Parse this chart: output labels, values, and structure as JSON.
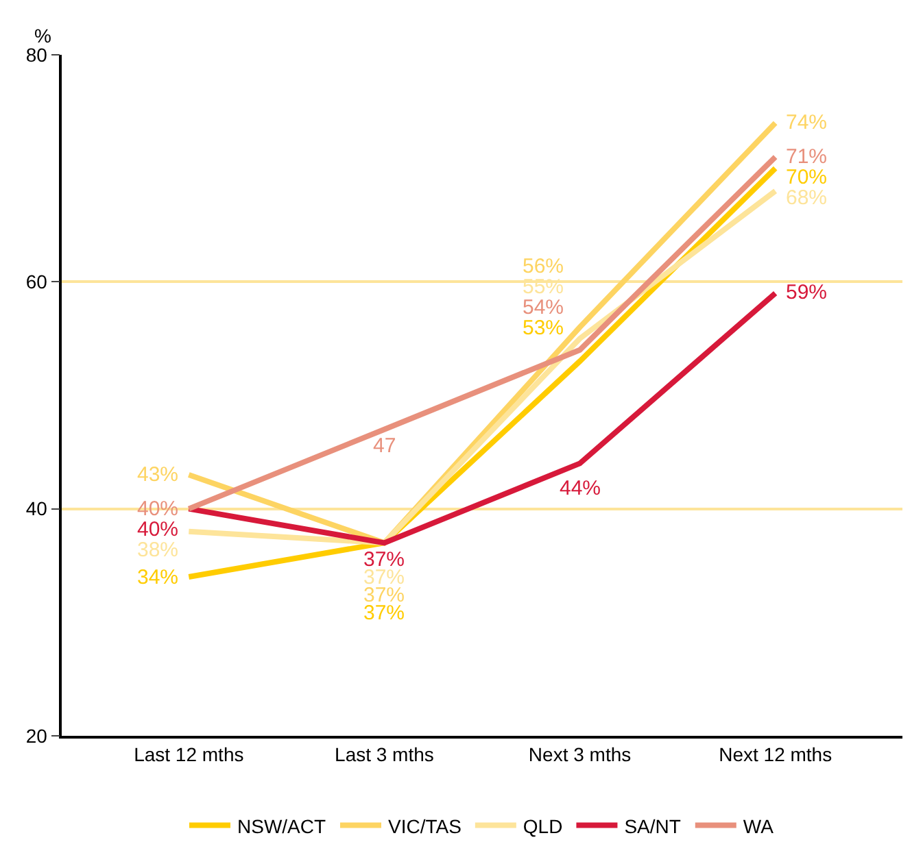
{
  "chart_data": {
    "type": "line",
    "ylabel": "%",
    "categories": [
      "Last 12 mths",
      "Last 3 mths",
      "Next 3 mths",
      "Next 12 mths"
    ],
    "ylim": [
      20,
      80
    ],
    "yticks": [
      20,
      40,
      60,
      80
    ],
    "grid": "y",
    "legend": "bottom",
    "marker": "none",
    "line_style": "solid",
    "series": [
      {
        "name": "NSW/ACT",
        "color": "#ffcc00",
        "values": [
          34,
          37,
          53,
          70
        ],
        "value_labels": [
          "34%",
          "37%",
          "53%",
          "70%"
        ]
      },
      {
        "name": "VIC/TAS",
        "color": "#fdd462",
        "values": [
          43,
          37,
          56,
          74
        ],
        "value_labels": [
          "43%",
          "37%",
          "56%",
          "74%"
        ]
      },
      {
        "name": "QLD",
        "color": "#fde49a",
        "values": [
          38,
          37,
          55,
          68
        ],
        "value_labels": [
          "38%",
          "37%",
          "55%",
          "68%"
        ]
      },
      {
        "name": "SA/NT",
        "color": "#d7193a",
        "values": [
          40,
          37,
          44,
          59
        ],
        "value_labels": [
          "40%",
          "37%",
          "44%",
          "59%"
        ]
      },
      {
        "name": "WA",
        "color": "#e8907c",
        "values": [
          40,
          47,
          54,
          71
        ],
        "value_labels": [
          "40%",
          "47",
          "54%",
          "71%"
        ]
      }
    ]
  }
}
